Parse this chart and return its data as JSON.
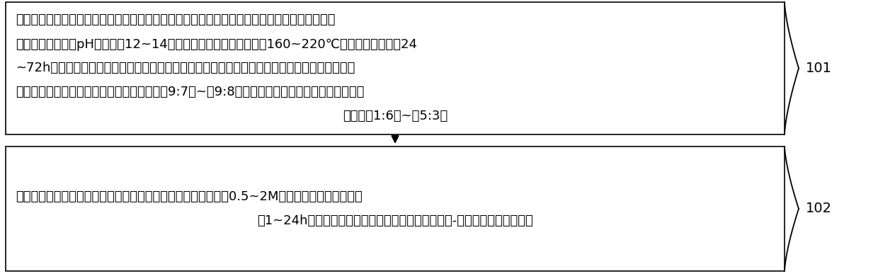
{
  "box1_lines": [
    "水热合成步骤：在室温下，将铋源物质、铁源物质和钛源物质溶于稀硝酸溶液中得到混合溶液，",
    "将所述混合溶液的pH值调节至12~14，得到含有沉淀的悬浊液；在160~220℃的条件下加热保温24",
    "~72h；清洗并烘干悬浊液中的沉淀得到粉末状的钛酸铁铋光催化剂，其中，所述铋源物质与铁源",
    "物质和钛源物质两种物质量的和的摩尔比为（9:7）~（9:8），所述铁源物质与所述钛源物质的摩",
    "尔比为（1:6）~（5:3）"
  ],
  "box2_lines": [
    "在室温或加热条件下将制得的钛酸铁铋光催化剂放入摩尔浓度为0.5~2M的稀盐酸溶液中，磁力搅",
    "拌1~24h；将混合溶液离心清洗烘干，得到氯氧化铋-钛酸铁铋复合光催化剂"
  ],
  "label1": "101",
  "label2": "102",
  "bg_color": "#ffffff",
  "box_border_color": "#000000",
  "text_color": "#000000",
  "arrow_color": "#000000",
  "font_size": 13,
  "label_font_size": 14
}
